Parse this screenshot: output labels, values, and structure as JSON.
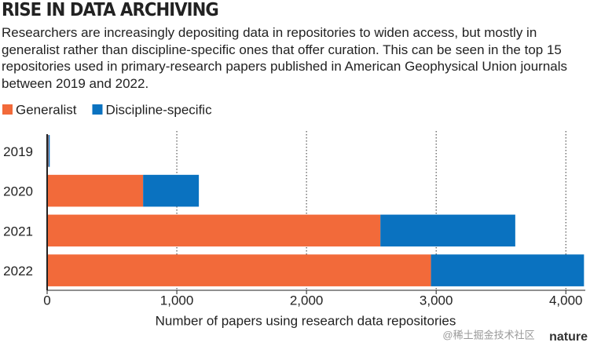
{
  "chart_data": {
    "type": "bar",
    "orientation": "horizontal",
    "stacked": true,
    "title": "RISE IN DATA ARCHIVING",
    "subtitle": "Researchers are increasingly depositing data in repositories to widen access, but mostly in generalist rather than discipline-specific ones that offer curation. This can be seen in the top 15 repositories used in primary-research papers published in American Geophysical Union journals between 2019 and 2022.",
    "x_label": "Number of papers using research data repositories",
    "categories": [
      "2019",
      "2020",
      "2021",
      "2022"
    ],
    "series": [
      {
        "name": "Generalist",
        "color": "#f26a3a",
        "values": [
          10,
          740,
          2570,
          2960
        ]
      },
      {
        "name": "Discipline-specific",
        "color": "#0a72c0",
        "values": [
          10,
          430,
          1040,
          1180
        ]
      }
    ],
    "xlim": [
      0,
      4150
    ],
    "xticks": [
      0,
      {
        "value": 1000,
        "label": "1,000"
      },
      {
        "value": 2000,
        "label": "2,000"
      },
      {
        "value": 3000,
        "label": "3,000"
      },
      {
        "value": 4000,
        "label": "4,000"
      }
    ],
    "grid": true,
    "legend": "top-left",
    "credit": "nature",
    "watermark": "@稀土掘金技术社区"
  }
}
